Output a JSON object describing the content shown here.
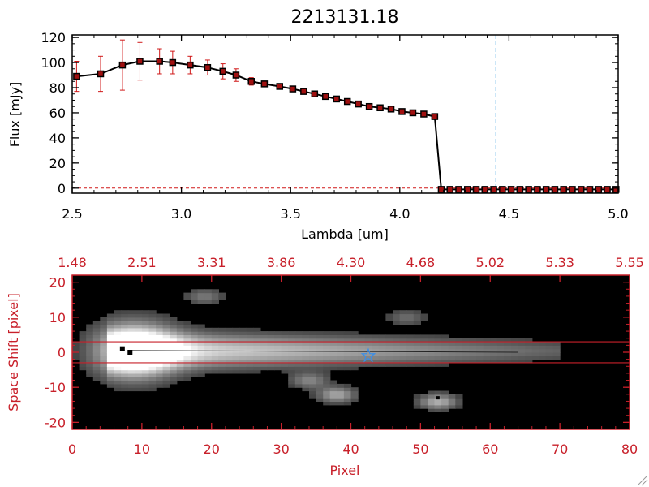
{
  "colors": {
    "axis_black": "#000000",
    "accent_red": "#c8202a",
    "errorbar_red": "#d01818",
    "marker_fill": "#a01010",
    "cutoff_line": "#3aa0e0",
    "star_marker": "#3a8ee8",
    "image_background": "#000000"
  },
  "chart_data": [
    {
      "type": "line",
      "title": "2213131.18",
      "xlabel": "Lambda [um]",
      "ylabel": "Flux [mJy]",
      "xlim": [
        2.5,
        5.0
      ],
      "ylim": [
        -4,
        122
      ],
      "xticks": [
        2.5,
        3.0,
        3.5,
        4.0,
        4.5,
        5.0
      ],
      "xtick_labels": [
        "2.5",
        "3.0",
        "3.5",
        "4.0",
        "4.5",
        "5.0"
      ],
      "yticks": [
        0,
        20,
        40,
        60,
        80,
        100,
        120
      ],
      "ytick_labels": [
        "0",
        "20",
        "40",
        "60",
        "80",
        "100",
        "120"
      ],
      "grid": false,
      "vertical_line_x": 4.44,
      "zero_line_dashed": true,
      "series": [
        {
          "x": [
            2.52,
            2.63,
            2.73,
            2.81,
            2.9,
            2.96,
            3.04,
            3.12,
            3.19,
            3.25,
            3.32,
            3.38,
            3.45,
            3.51,
            3.56,
            3.61,
            3.66,
            3.71,
            3.76,
            3.81,
            3.86,
            3.91,
            3.96,
            4.01,
            4.06,
            4.11,
            4.16,
            4.19,
            4.23,
            4.27,
            4.31,
            4.35,
            4.39,
            4.43,
            4.47,
            4.51,
            4.55,
            4.59,
            4.63,
            4.67,
            4.71,
            4.75,
            4.79,
            4.83,
            4.87,
            4.91,
            4.95,
            4.99
          ],
          "y": [
            89,
            91,
            98,
            101,
            101,
            100,
            98,
            96,
            93,
            90,
            85,
            83,
            81,
            79,
            77,
            75,
            73,
            71,
            69,
            67,
            65,
            64,
            63,
            61,
            60,
            59,
            57,
            -1,
            -1,
            -1,
            -1,
            -1,
            -1,
            -1,
            -1,
            -1,
            -1,
            -1,
            -1,
            -1,
            -1,
            -1,
            -1,
            -1,
            -1,
            -1,
            -1,
            -1
          ],
          "err": [
            12,
            14,
            20,
            15,
            10,
            9,
            7,
            6,
            6,
            5,
            3,
            2,
            2,
            1,
            1,
            1,
            1,
            1,
            1,
            1,
            1,
            1,
            1,
            1,
            1,
            1,
            1,
            0,
            0,
            0,
            0,
            0,
            0,
            0,
            0,
            0,
            0,
            0,
            0,
            0,
            0,
            0,
            0,
            0,
            0,
            0,
            0,
            0
          ]
        }
      ]
    },
    {
      "type": "heatmap",
      "xlabel": "Pixel",
      "ylabel": "Space Shift [pixel]",
      "xlim": [
        0,
        80
      ],
      "ylim": [
        -22,
        22
      ],
      "xticks": [
        0,
        10,
        20,
        30,
        40,
        50,
        60,
        70,
        80
      ],
      "xtick_labels": [
        "0",
        "10",
        "20",
        "30",
        "40",
        "50",
        "60",
        "70",
        "80"
      ],
      "yticks": [
        -20,
        -10,
        0,
        10,
        20
      ],
      "ytick_labels": [
        "-20",
        "-10",
        "0",
        "10",
        "20"
      ],
      "top_axis_tick_labels": [
        "1.48",
        "2.51",
        "3.31",
        "3.86",
        "4.30",
        "4.68",
        "5.02",
        "5.33",
        "5.55"
      ],
      "extraction_aperture_y": [
        -3,
        3
      ],
      "star_marker": {
        "x": 42.5,
        "y": -1
      },
      "trace": {
        "x_start": 8,
        "x_end": 70,
        "peak_x": 9,
        "peak_y": 0.5,
        "value": "bright"
      },
      "blobs": [
        {
          "x": 9,
          "y": 0.5,
          "peak": 1.0
        },
        {
          "x": 19,
          "y": 16,
          "peak": 0.35
        },
        {
          "x": 34,
          "y": -8,
          "peak": 0.4
        },
        {
          "x": 38,
          "y": -12,
          "peak": 0.55
        },
        {
          "x": 52.5,
          "y": -14,
          "peak": 0.6
        },
        {
          "x": 48,
          "y": 10,
          "peak": 0.3
        }
      ]
    }
  ]
}
